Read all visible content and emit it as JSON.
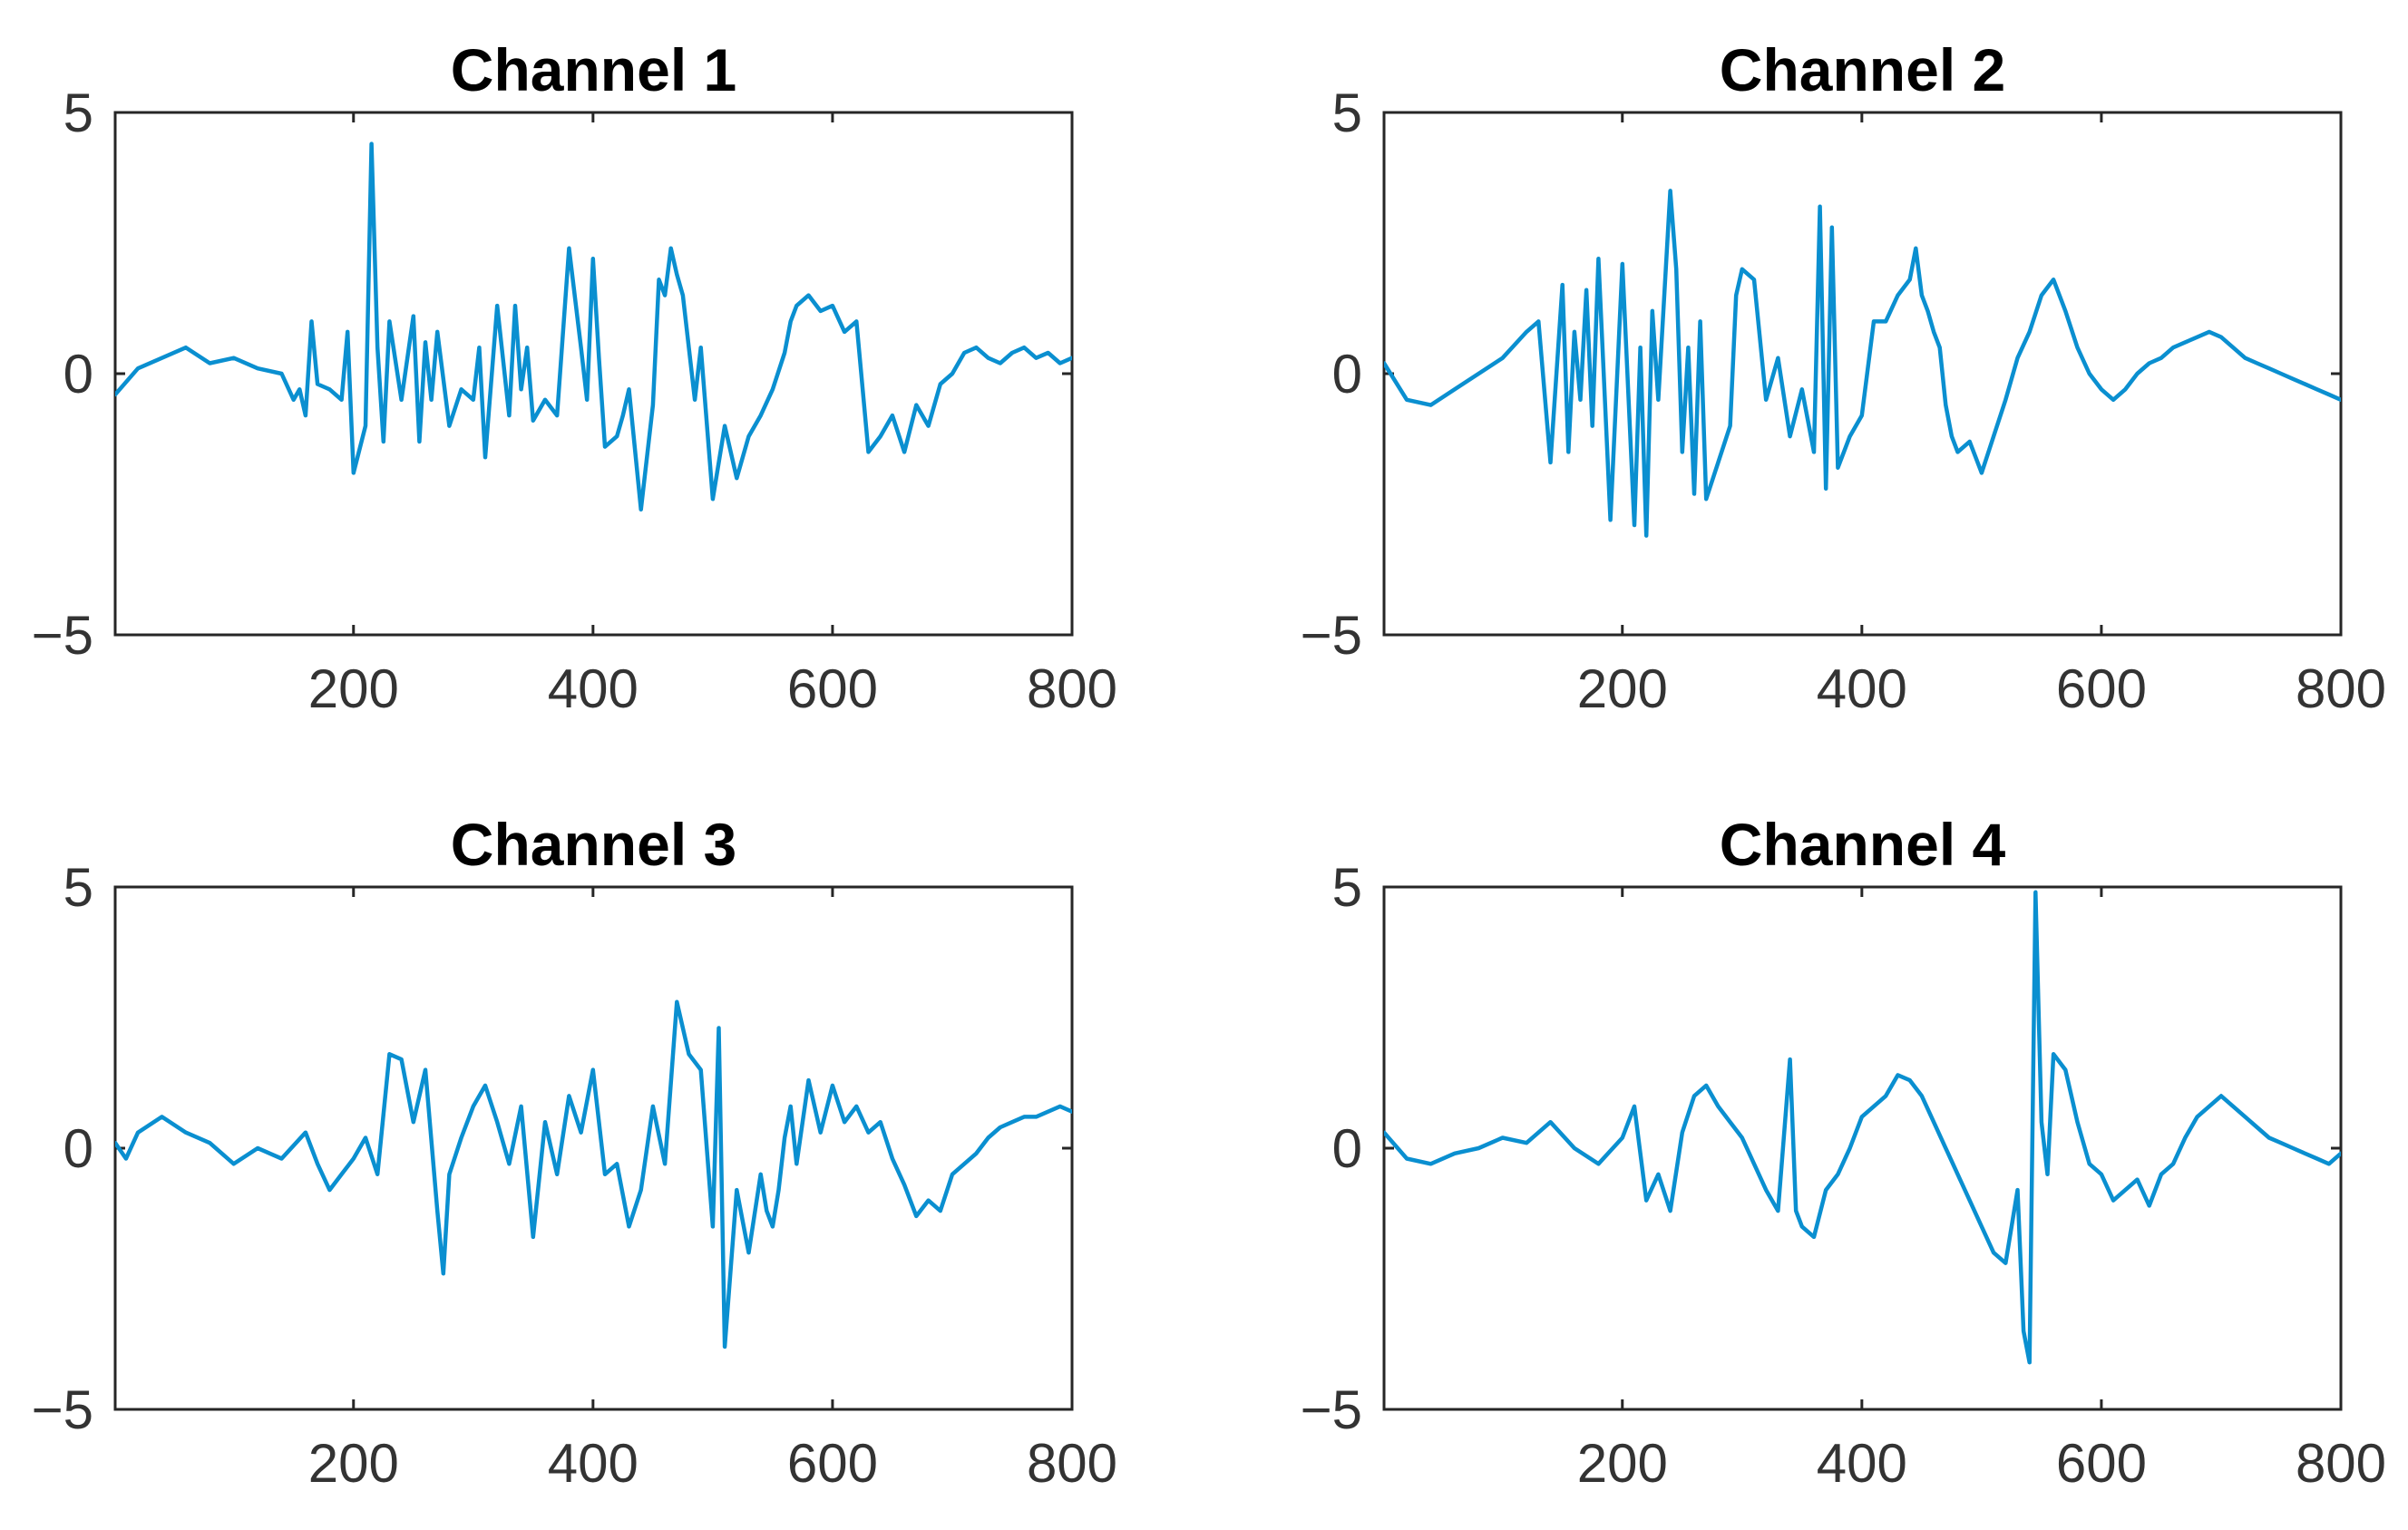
{
  "colors": {
    "line": "#0a8fd0",
    "axes": "#262626",
    "tick_text": "#333333",
    "title_text": "#000000"
  },
  "chart_data": [
    {
      "type": "line",
      "title": "Channel 1",
      "xlim": [
        1,
        800
      ],
      "ylim": [
        -5,
        5
      ],
      "xticks": [
        200,
        400,
        600,
        800
      ],
      "xtick_labels": [
        "200",
        "400",
        "600",
        "800"
      ],
      "yticks": [
        -5,
        0,
        5
      ],
      "ytick_labels": [
        "−5",
        "0",
        "5"
      ],
      "grid": false,
      "series": [
        {
          "x": [
            1,
            20,
            40,
            60,
            80,
            100,
            120,
            140,
            150,
            155,
            160,
            165,
            170,
            180,
            190,
            195,
            200,
            210,
            215,
            220,
            225,
            230,
            240,
            250,
            255,
            260,
            265,
            270,
            280,
            290,
            300,
            305,
            310,
            320,
            330,
            335,
            340,
            345,
            350,
            360,
            370,
            380,
            390,
            395,
            400,
            405,
            410,
            420,
            425,
            430,
            440,
            450,
            455,
            460,
            465,
            470,
            475,
            480,
            485,
            490,
            500,
            510,
            520,
            530,
            540,
            550,
            560,
            565,
            570,
            580,
            590,
            600,
            610,
            620,
            630,
            640,
            650,
            660,
            670,
            680,
            690,
            700,
            710,
            720,
            730,
            740,
            750,
            760,
            770,
            780,
            790,
            800
          ],
          "y": [
            -0.4,
            0.1,
            0.3,
            0.5,
            0.2,
            0.3,
            0.1,
            0,
            -0.5,
            -0.3,
            -0.8,
            1,
            -0.2,
            -0.3,
            -0.5,
            0.8,
            -1.9,
            -1,
            4.4,
            0.5,
            -1.3,
            1,
            -0.5,
            1.1,
            -1.3,
            0.6,
            -0.5,
            0.8,
            -1,
            -0.3,
            -0.5,
            0.5,
            -1.6,
            1.3,
            -0.8,
            1.3,
            -0.3,
            0.5,
            -0.9,
            -0.5,
            -0.8,
            2.4,
            0.5,
            -0.5,
            2.2,
            0.3,
            -1.4,
            -1.2,
            -0.8,
            -0.3,
            -2.6,
            -0.6,
            1.8,
            1.5,
            2.4,
            1.9,
            1.5,
            0.5,
            -0.5,
            0.5,
            -2.4,
            -1,
            -2,
            -1.2,
            -0.8,
            -0.3,
            0.4,
            1,
            1.3,
            1.5,
            1.2,
            1.3,
            0.8,
            1,
            -1.5,
            -1.2,
            -0.8,
            -1.5,
            -0.6,
            -1,
            -0.2,
            0,
            0.4,
            0.5,
            0.3,
            0.2,
            0.4,
            0.5,
            0.3,
            0.4,
            0.2,
            0.3
          ]
        }
      ]
    },
    {
      "type": "line",
      "title": "Channel 2",
      "xlim": [
        1,
        800
      ],
      "ylim": [
        -5,
        5
      ],
      "xticks": [
        200,
        400,
        600,
        800
      ],
      "xtick_labels": [
        "200",
        "400",
        "600",
        "800"
      ],
      "yticks": [
        -5,
        0,
        5
      ],
      "ytick_labels": [
        "−5",
        "0",
        "5"
      ],
      "grid": false,
      "series": [
        {
          "x": [
            1,
            20,
            40,
            60,
            80,
            100,
            120,
            130,
            140,
            150,
            155,
            160,
            165,
            170,
            175,
            180,
            190,
            200,
            210,
            215,
            220,
            225,
            230,
            240,
            245,
            250,
            255,
            260,
            265,
            270,
            280,
            290,
            295,
            300,
            310,
            320,
            330,
            340,
            350,
            360,
            365,
            370,
            375,
            380,
            390,
            400,
            410,
            420,
            430,
            440,
            445,
            450,
            455,
            460,
            465,
            470,
            475,
            480,
            490,
            500,
            510,
            520,
            530,
            540,
            550,
            560,
            570,
            580,
            590,
            600,
            610,
            620,
            630,
            640,
            650,
            660,
            670,
            680,
            690,
            700,
            710,
            720,
            730,
            740,
            750,
            760,
            770,
            780,
            790,
            800
          ],
          "y": [
            0.2,
            -0.5,
            -0.6,
            -0.3,
            0,
            0.3,
            0.8,
            1,
            -1.7,
            1.7,
            -1.5,
            0.8,
            -0.5,
            1.6,
            -1,
            2.2,
            -2.8,
            2.1,
            -2.9,
            0.5,
            -3.1,
            1.2,
            -0.5,
            3.5,
            2,
            -1.5,
            0.5,
            -2.3,
            1,
            -2.4,
            -1.7,
            -1,
            1.5,
            2,
            1.8,
            -0.5,
            0.3,
            -1.2,
            -0.3,
            -1.5,
            3.2,
            -2.2,
            2.8,
            -1.8,
            -1.2,
            -0.8,
            1,
            1,
            1.5,
            1.8,
            2.4,
            1.5,
            1.2,
            0.8,
            0.5,
            -0.6,
            -1.2,
            -1.5,
            -1.3,
            -1.9,
            -1.2,
            -0.5,
            0.3,
            0.8,
            1.5,
            1.8,
            1.2,
            0.5,
            0,
            -0.3,
            -0.5,
            -0.3,
            0,
            0.2,
            0.3,
            0.5,
            0.6,
            0.7,
            0.8,
            0.7,
            0.5,
            0.3,
            0.2,
            0.1,
            0,
            -0.1,
            -0.2,
            -0.3,
            -0.4,
            -0.5
          ]
        }
      ]
    },
    {
      "type": "line",
      "title": "Channel 3",
      "xlim": [
        1,
        800
      ],
      "ylim": [
        -5,
        5
      ],
      "xticks": [
        200,
        400,
        600,
        800
      ],
      "xtick_labels": [
        "200",
        "400",
        "600",
        "800"
      ],
      "yticks": [
        -5,
        0,
        5
      ],
      "ytick_labels": [
        "−5",
        "0",
        "5"
      ],
      "grid": false,
      "series": [
        {
          "x": [
            1,
            10,
            20,
            40,
            60,
            80,
            100,
            120,
            140,
            160,
            170,
            180,
            190,
            200,
            210,
            220,
            230,
            240,
            250,
            260,
            270,
            275,
            280,
            290,
            300,
            310,
            320,
            330,
            340,
            350,
            360,
            370,
            380,
            390,
            400,
            410,
            420,
            430,
            440,
            450,
            460,
            470,
            480,
            490,
            500,
            505,
            510,
            520,
            530,
            540,
            545,
            550,
            555,
            560,
            565,
            570,
            575,
            580,
            590,
            600,
            610,
            620,
            630,
            640,
            650,
            660,
            670,
            680,
            690,
            700,
            710,
            720,
            730,
            740,
            750,
            760,
            770,
            780,
            790,
            800
          ],
          "y": [
            0.1,
            -0.2,
            0.3,
            0.6,
            0.3,
            0.1,
            -0.3,
            0,
            -0.2,
            0.3,
            -0.3,
            -0.8,
            -0.5,
            -0.2,
            0.2,
            -0.5,
            1.8,
            1.7,
            0.5,
            1.5,
            -1.2,
            -2.4,
            -0.5,
            0.2,
            0.8,
            1.2,
            0.5,
            -0.3,
            0.8,
            -1.7,
            0.5,
            -0.5,
            1,
            0.3,
            1.5,
            -0.5,
            -0.3,
            -1.5,
            -0.8,
            0.8,
            -0.3,
            2.8,
            1.8,
            1.5,
            -1.5,
            2.3,
            -3.8,
            -0.8,
            -2,
            -0.5,
            -1.2,
            -1.5,
            -0.8,
            0.2,
            0.8,
            -0.3,
            0.5,
            1.3,
            0.3,
            1.2,
            0.5,
            0.8,
            0.3,
            0.5,
            -0.2,
            -0.7,
            -1.3,
            -1,
            -1.2,
            -0.5,
            -0.3,
            -0.1,
            0.2,
            0.4,
            0.5,
            0.6,
            0.6,
            0.7,
            0.8,
            0.7
          ]
        }
      ]
    },
    {
      "type": "line",
      "title": "Channel 4",
      "xlim": [
        1,
        800
      ],
      "ylim": [
        -5,
        5
      ],
      "xticks": [
        200,
        400,
        600,
        800
      ],
      "xtick_labels": [
        "200",
        "400",
        "600",
        "800"
      ],
      "yticks": [
        -5,
        0,
        5
      ],
      "ytick_labels": [
        "−5",
        "0",
        "5"
      ],
      "grid": false,
      "series": [
        {
          "x": [
            1,
            20,
            40,
            60,
            80,
            100,
            120,
            140,
            160,
            180,
            200,
            210,
            220,
            230,
            240,
            250,
            260,
            270,
            280,
            290,
            300,
            310,
            320,
            330,
            340,
            345,
            350,
            360,
            370,
            380,
            390,
            400,
            410,
            420,
            430,
            440,
            450,
            460,
            470,
            480,
            490,
            500,
            510,
            520,
            530,
            535,
            540,
            545,
            550,
            555,
            560,
            570,
            580,
            590,
            600,
            610,
            620,
            630,
            640,
            650,
            660,
            670,
            680,
            690,
            700,
            710,
            720,
            730,
            740,
            750,
            760,
            770,
            780,
            790,
            800
          ],
          "y": [
            0.3,
            -0.2,
            -0.3,
            -0.1,
            0,
            0.2,
            0.1,
            0.5,
            0,
            -0.3,
            0.2,
            0.8,
            -1,
            -0.5,
            -1.2,
            0.3,
            1,
            1.2,
            0.8,
            0.5,
            0.2,
            -0.3,
            -0.8,
            -1.2,
            1.7,
            -1.2,
            -1.5,
            -1.7,
            -0.8,
            -0.5,
            0,
            0.6,
            0.8,
            1,
            1.4,
            1.3,
            1,
            0.5,
            0,
            -0.5,
            -1,
            -1.5,
            -2,
            -2.2,
            -0.8,
            -3.5,
            -4.1,
            4.9,
            0.5,
            -0.5,
            1.8,
            1.5,
            0.5,
            -0.3,
            -0.5,
            -1,
            -0.8,
            -0.6,
            -1.1,
            -0.5,
            -0.3,
            0.2,
            0.6,
            0.8,
            1,
            0.8,
            0.6,
            0.4,
            0.2,
            0.1,
            0,
            -0.1,
            -0.2,
            -0.3,
            -0.1
          ]
        }
      ]
    }
  ]
}
